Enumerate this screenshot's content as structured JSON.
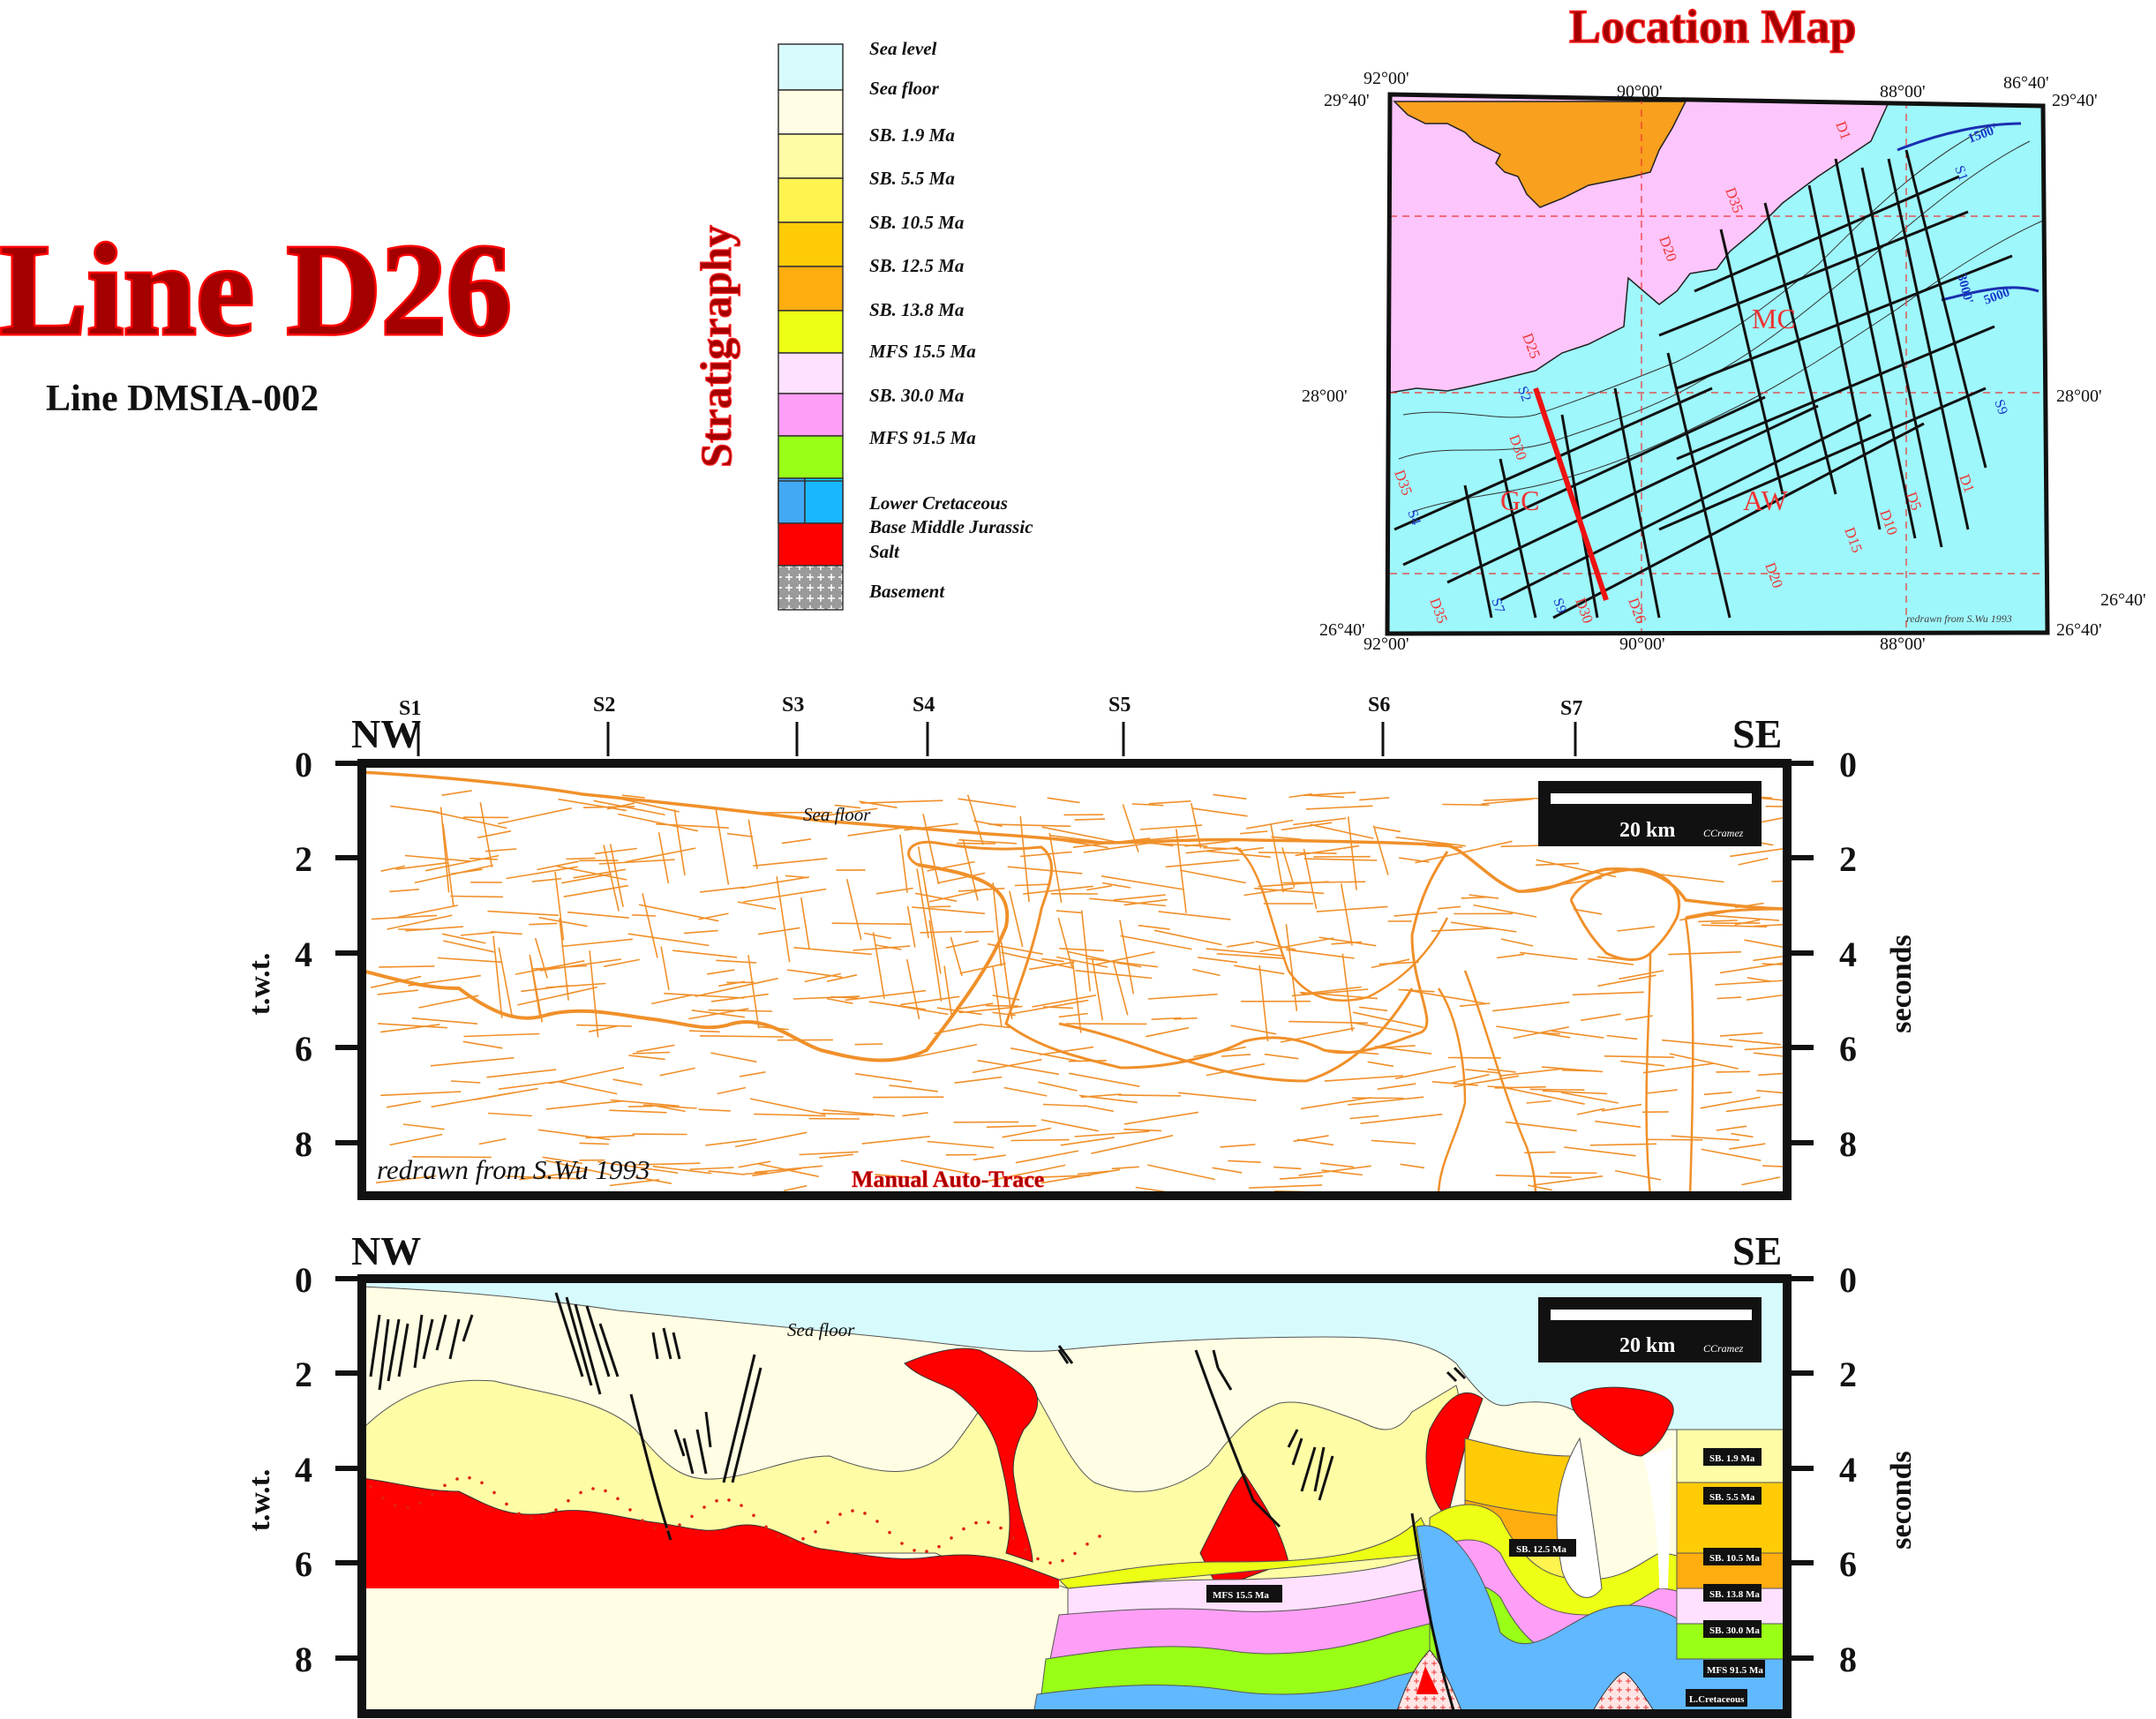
{
  "title": {
    "main": "Line D26",
    "subtitle": "Line DMSIA-002"
  },
  "stratigraphy": {
    "heading": "Stratigraphy",
    "units": [
      {
        "label": "Sea level",
        "color": "#d7fbfd"
      },
      {
        "label": "Sea floor",
        "color": "#fffde3"
      },
      {
        "label": "SB. 1.9 Ma",
        "color": "#fffca6"
      },
      {
        "label": "SB. 5.5 Ma",
        "color": "#fff34f"
      },
      {
        "label": "SB. 10.5 Ma",
        "color": "#ffcb07"
      },
      {
        "label": "SB. 12.5 Ma",
        "color": "#ffad0f"
      },
      {
        "label": "SB. 13.8 Ma",
        "color": "#ecff14"
      },
      {
        "label": "MFS 15.5 Ma",
        "color": "#ffe1ff"
      },
      {
        "label": "SB. 30.0 Ma",
        "color": "#ff9ef6"
      },
      {
        "label": "MFS 91.5 Ma",
        "color": "#99ff17"
      },
      {
        "label": "Lower Cretaceous",
        "color": "#42a9f4"
      },
      {
        "label": "Base Middle Jurassic",
        "color": "#00e0ff"
      },
      {
        "label": "Salt",
        "color": "#ff0000"
      },
      {
        "label": "Basement",
        "color": "#8c8c8c"
      }
    ]
  },
  "location_map": {
    "title": "Location Map",
    "credit": "redrawn from S.Wu 1993",
    "lon_labels_top": [
      "92°00'",
      "90°00'",
      "88°00'",
      "86°40'"
    ],
    "lon_labels_bottom": [
      "92°00'",
      "90°00'",
      "88°00'"
    ],
    "lat_labels": [
      "29°40'",
      "28°00'",
      "26°40'"
    ],
    "region_labels": [
      "MC",
      "GC",
      "AW"
    ],
    "contour_labels": [
      "1500'",
      "3000'",
      "5000'"
    ],
    "line_labels_red": [
      "D1",
      "D5",
      "D10",
      "D15",
      "D20",
      "D25",
      "D26",
      "D30",
      "D35"
    ],
    "line_labels_blue": [
      "S1",
      "S2",
      "S3",
      "S4",
      "S5",
      "S6",
      "S7",
      "S8",
      "S9"
    ],
    "colors": {
      "land": "#fcc5fb",
      "sea": "#9ef7fb",
      "shelf_land": "#f9a01e",
      "line_red": "#ee1111"
    }
  },
  "sections": {
    "shot_points": [
      "S1",
      "S2",
      "S3",
      "S4",
      "S5",
      "S6",
      "S7"
    ],
    "nw_label": "NW",
    "se_label": "SE",
    "y_ticks": [
      "0",
      "2",
      "4",
      "6",
      "8"
    ],
    "left_axis_title": "t.w.t.",
    "right_axis_title": "seconds",
    "scale_bar_label": "20 km",
    "scale_bar_credit": "CCramez",
    "sea_floor_label": "Sea floor",
    "top_panel": {
      "credit": "redrawn from S.Wu 1993",
      "method": "Manual Auto-Trace",
      "trace_color": "#f0902a"
    },
    "bottom_panel": {
      "horizon_tags_right": [
        "SB. 1.9 Ma",
        "SB. 5.5 Ma",
        "SB. 10.5 Ma",
        "SB. 13.8 Ma",
        "SB. 30.0 Ma",
        "MFS 91.5 Ma",
        "L.Cretaceous"
      ],
      "horizon_tags_inner": [
        "SB. 12.5 Ma",
        "MFS 15.5 Ma"
      ]
    }
  }
}
